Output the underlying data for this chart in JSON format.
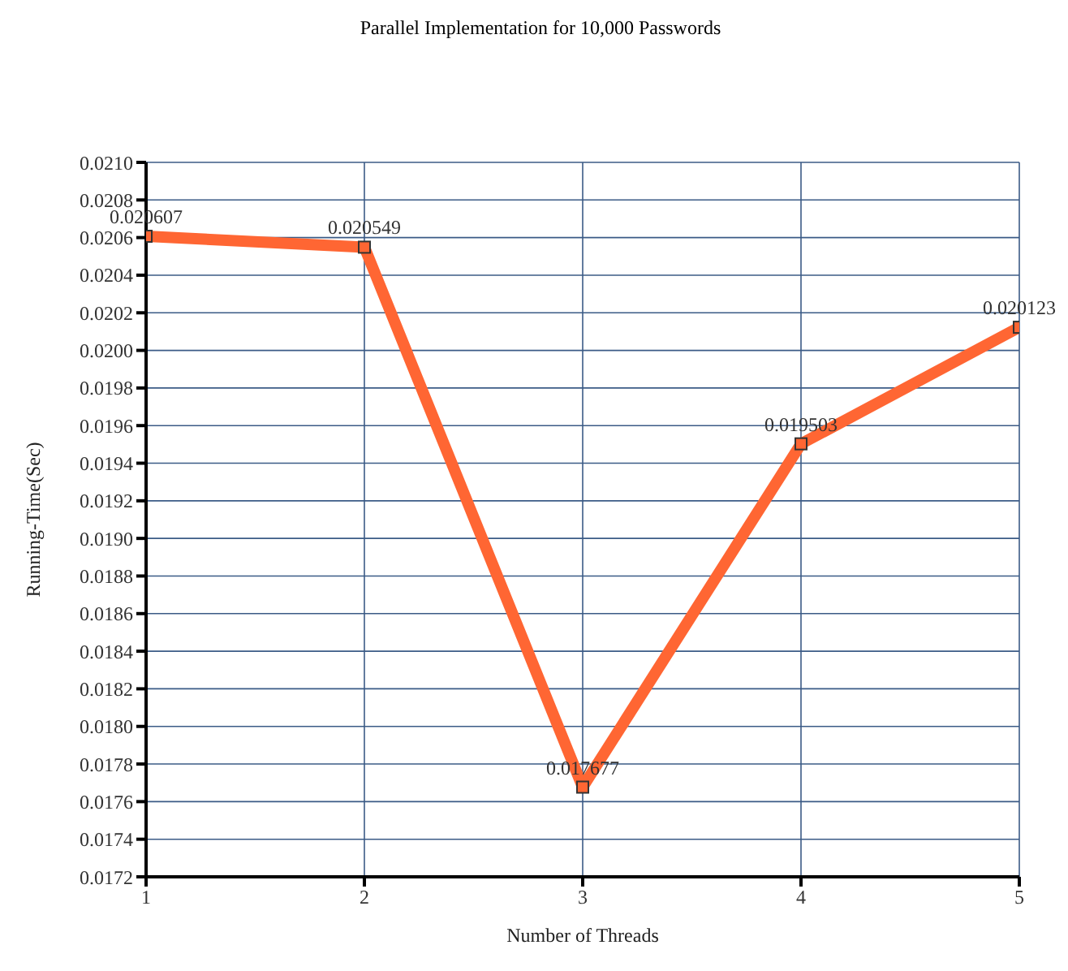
{
  "chart_data": {
    "type": "line",
    "title": "Parallel Implementation for 10,000 Passwords",
    "xlabel": "Number of Threads",
    "ylabel": "Running-Time(Sec)",
    "x": [
      1,
      2,
      3,
      4,
      5
    ],
    "series": [
      {
        "color": "#ff6633",
        "values": [
          0.020607,
          0.020549,
          0.017677,
          0.019503,
          0.020123
        ]
      }
    ],
    "data_labels": true,
    "marker": "square",
    "grid": true,
    "legend": false,
    "xlim": [
      1,
      5
    ],
    "xticks": [
      1,
      2,
      3,
      4,
      5
    ],
    "ylim": [
      0.0172,
      0.021
    ],
    "yticks": [
      {
        "value": 0.0172,
        "label": "0.0172"
      },
      {
        "value": 0.0174,
        "label": "0.0174"
      },
      {
        "value": 0.0176,
        "label": "0.0176"
      },
      {
        "value": 0.0178,
        "label": "0.0178"
      },
      {
        "value": 0.018,
        "label": "0.0180"
      },
      {
        "value": 0.0182,
        "label": "0.0182"
      },
      {
        "value": 0.0184,
        "label": "0.0184"
      },
      {
        "value": 0.0186,
        "label": "0.0186"
      },
      {
        "value": 0.0188,
        "label": "0.0188"
      },
      {
        "value": 0.019,
        "label": "0.0190"
      },
      {
        "value": 0.0192,
        "label": "0.0192"
      },
      {
        "value": 0.0194,
        "label": "0.0194"
      },
      {
        "value": 0.0196,
        "label": "0.0196"
      },
      {
        "value": 0.0198,
        "label": "0.0198"
      },
      {
        "value": 0.02,
        "label": "0.0200"
      },
      {
        "value": 0.0202,
        "label": "0.0202"
      },
      {
        "value": 0.0204,
        "label": "0.0204"
      },
      {
        "value": 0.0206,
        "label": "0.0206"
      },
      {
        "value": 0.0208,
        "label": "0.0208"
      },
      {
        "value": 0.021,
        "label": "0.0210"
      }
    ]
  }
}
